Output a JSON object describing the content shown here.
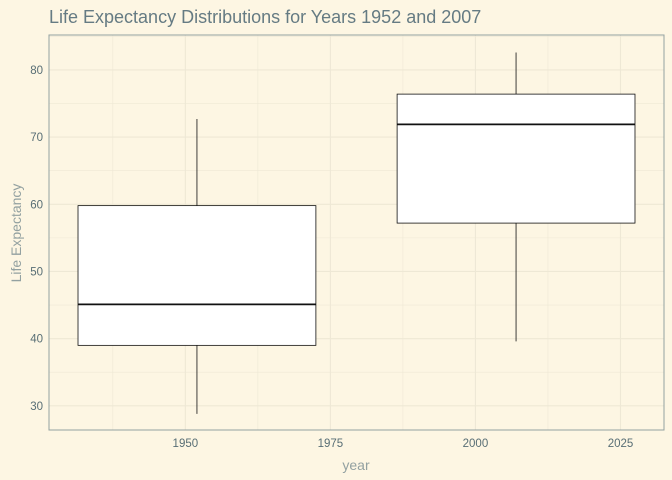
{
  "colors": {
    "background": "#FDF6E3",
    "panel_border": "#93A1A1",
    "grid": "#EEE8D5",
    "box_fill": "#FFFFFF",
    "box_stroke": "#111111"
  },
  "chart_data": {
    "type": "boxplot",
    "title": "Life Expectancy Distributions for Years 1952 and 2007",
    "xlabel": "year",
    "ylabel": "Life Expectancy",
    "xlim": [
      1926.5,
      2032.5
    ],
    "ylim": [
      26.4,
      85.2
    ],
    "x_ticks": [
      1950,
      1975,
      2000,
      2025
    ],
    "y_ticks": [
      30,
      40,
      50,
      60,
      70,
      80
    ],
    "grid": true,
    "boxes": [
      {
        "x": 1952,
        "width": 41,
        "whisker_low": 28.8,
        "q1": 39.0,
        "median": 45.1,
        "q3": 59.8,
        "whisker_high": 72.7
      },
      {
        "x": 2007,
        "width": 41,
        "whisker_low": 39.6,
        "q1": 57.2,
        "median": 71.9,
        "q3": 76.4,
        "whisker_high": 82.6
      }
    ]
  }
}
